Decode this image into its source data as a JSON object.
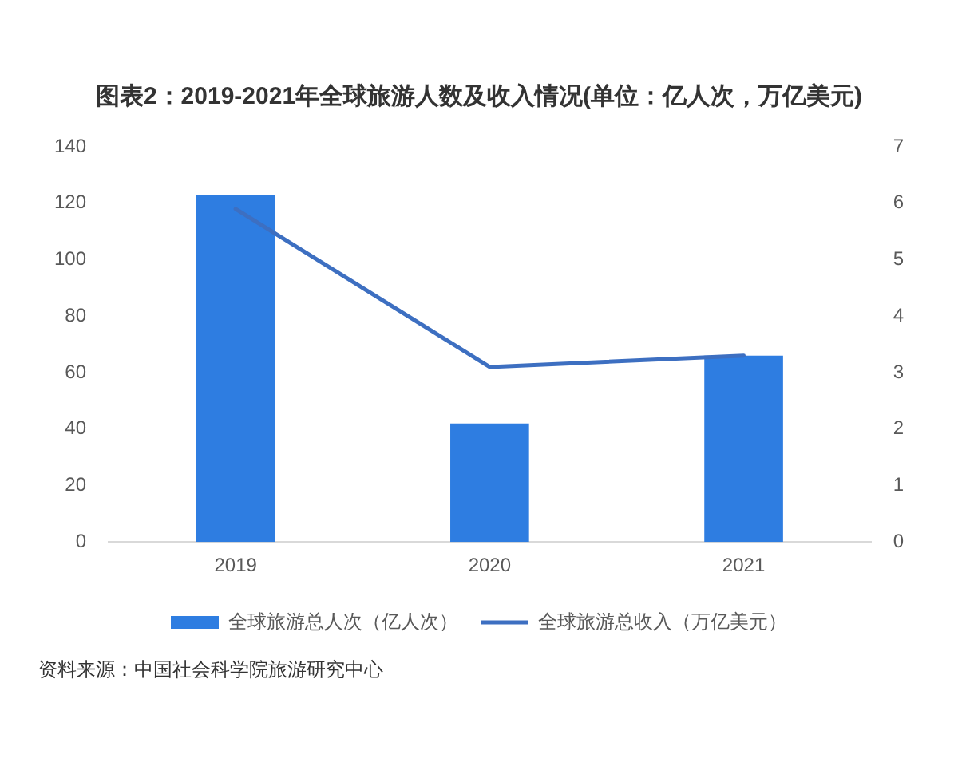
{
  "chart_data": {
    "type": "bar",
    "title": "图表2：2019-2021年全球旅游人数及收入情况(单位：亿人次，万亿美元)",
    "categories": [
      "2019",
      "2020",
      "2021"
    ],
    "series": [
      {
        "name": "全球旅游总人次（亿人次）",
        "color": "#2e7de1",
        "values": [
          123,
          42,
          66
        ]
      },
      {
        "name": "全球旅游总收入（万亿美元）",
        "type": "line",
        "axis": "y2",
        "color": "#3d6fc1",
        "values": [
          5.9,
          3.1,
          3.3
        ]
      }
    ],
    "ylim": [
      0,
      140
    ],
    "yticks": [
      0,
      20,
      40,
      60,
      80,
      100,
      120,
      140
    ],
    "y2lim": [
      0,
      7
    ],
    "y2ticks": [
      0,
      1,
      2,
      3,
      4,
      5,
      6,
      7
    ],
    "grid": false,
    "legend": "bottom",
    "marker": "none",
    "line_style": "solid",
    "annotations": [
      "资料来源：中国社会科学院旅游研究中心"
    ]
  }
}
